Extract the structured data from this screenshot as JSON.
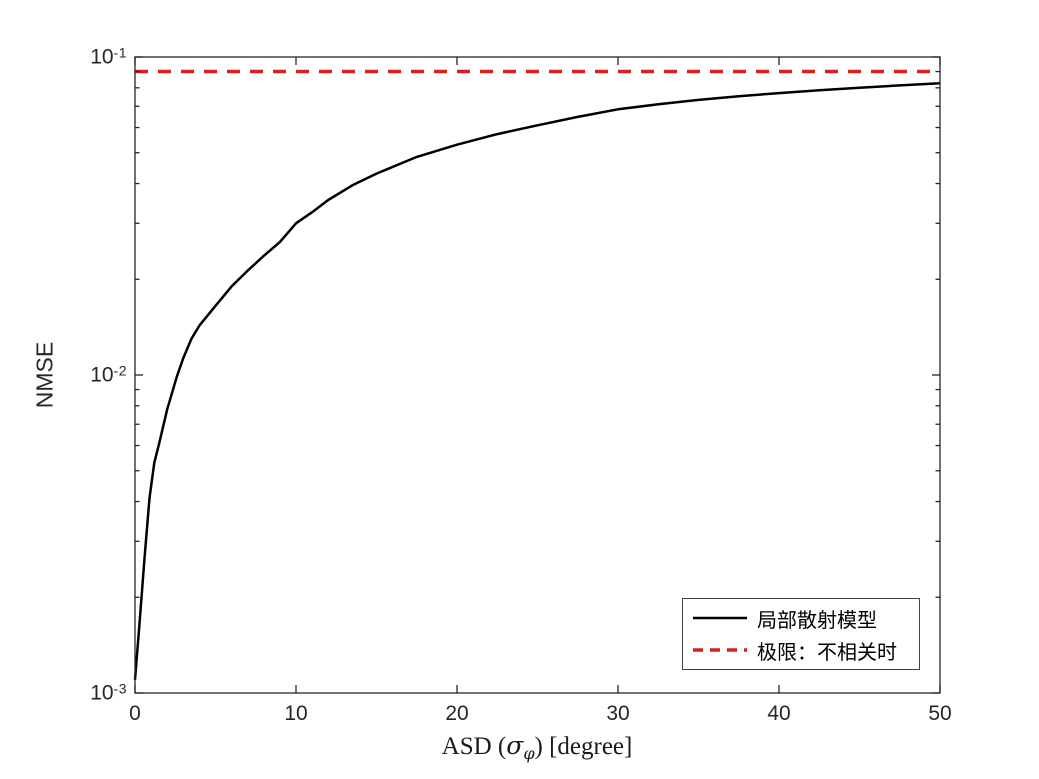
{
  "figure": {
    "background": "#ffffff"
  },
  "chart_data": {
    "type": "line",
    "title": "",
    "ylabel": "NMSE",
    "xlabel": {
      "pre": "ASD (",
      "sigma": "σ",
      "sub": "φ",
      "post": ") [degree]"
    },
    "xlim": [
      0,
      50
    ],
    "ylim": [
      0.001,
      0.1
    ],
    "y_scale": "log",
    "grid": false,
    "x_ticks": [
      0,
      10,
      20,
      30,
      40,
      50
    ],
    "y_ticks": [
      {
        "value": 0.1,
        "base": "10",
        "exp": "-1"
      },
      {
        "value": 0.01,
        "base": "10",
        "exp": "-2"
      },
      {
        "value": 0.001,
        "base": "10",
        "exp": "-3"
      }
    ],
    "y_minor_mantissas": [
      2,
      3,
      4,
      5,
      6,
      7,
      8,
      9
    ],
    "y_minor_decades": [
      0.001,
      0.01
    ],
    "series": [
      {
        "name": "局部散射模型",
        "style": "solid",
        "color": "#000000",
        "line_width": 2.5,
        "x": [
          0,
          0.3,
          0.6,
          0.9,
          1.2,
          1.5,
          2,
          2.6,
          3,
          3.5,
          4,
          5,
          6,
          7,
          8,
          9,
          10,
          11,
          12,
          13.5,
          15,
          17.5,
          20,
          22.5,
          25,
          27.5,
          30,
          32.5,
          35,
          37.5,
          40,
          42.5,
          45,
          47.5,
          50
        ],
        "y": [
          0.0011,
          0.0017,
          0.0027,
          0.0041,
          0.0053,
          0.0061,
          0.0078,
          0.0099,
          0.0113,
          0.013,
          0.0143,
          0.0165,
          0.019,
          0.0213,
          0.0237,
          0.0262,
          0.03,
          0.0325,
          0.0355,
          0.0395,
          0.043,
          0.0485,
          0.053,
          0.0572,
          0.061,
          0.0648,
          0.0685,
          0.071,
          0.0733,
          0.0753,
          0.077,
          0.0786,
          0.08,
          0.0814,
          0.0827
        ]
      },
      {
        "name": "极限：不相关时",
        "style": "dashed",
        "color": "#d8201f",
        "line_width": 3.5,
        "dash": [
          13,
          10
        ],
        "constant_y": 0.09
      }
    ],
    "legend": {
      "position": "southeast",
      "items": [
        {
          "label": "局部散射模型"
        },
        {
          "label": "极限：不相关时"
        }
      ]
    },
    "axis_color": "#262626",
    "tick_label_color": "#262626"
  }
}
